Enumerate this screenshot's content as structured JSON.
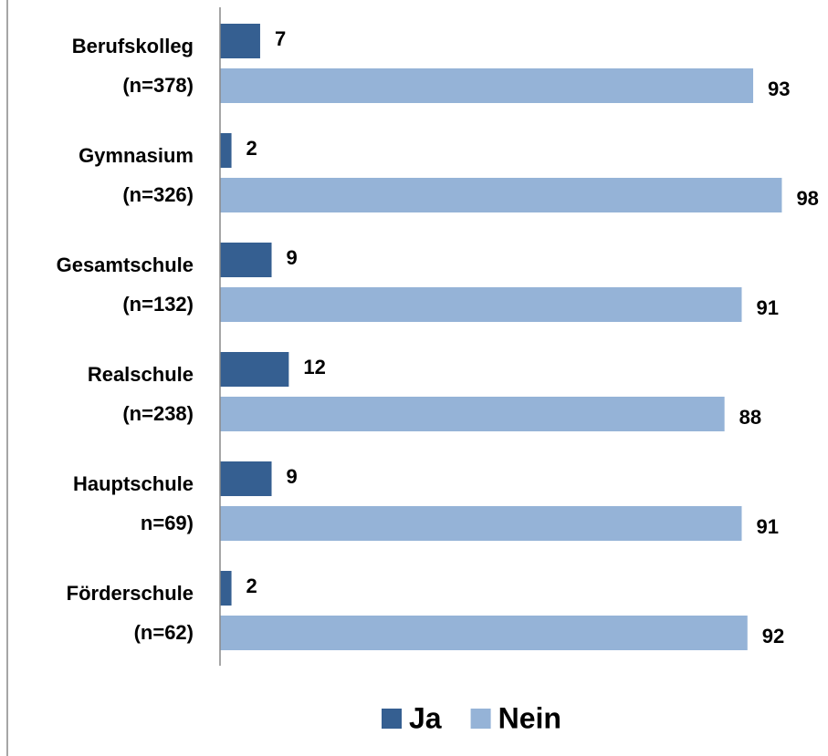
{
  "chart_data": {
    "type": "bar",
    "orientation": "horizontal",
    "categories": [
      [
        "Berufskolleg",
        "(n=378)"
      ],
      [
        "Gymnasium",
        "(n=326)"
      ],
      [
        "Gesamtschule",
        "(n=132)"
      ],
      [
        "Realschule",
        "(n=238)"
      ],
      [
        "Hauptschule",
        "n=69)"
      ],
      [
        "Förderschule",
        "(n=62)"
      ]
    ],
    "series": [
      {
        "name": "Ja",
        "color": "#355f91",
        "values": [
          7,
          2,
          9,
          12,
          9,
          2
        ]
      },
      {
        "name": "Nein",
        "color": "#95b3d7",
        "values": [
          93,
          98,
          91,
          88,
          91,
          92
        ]
      }
    ],
    "legend": "bottom"
  }
}
